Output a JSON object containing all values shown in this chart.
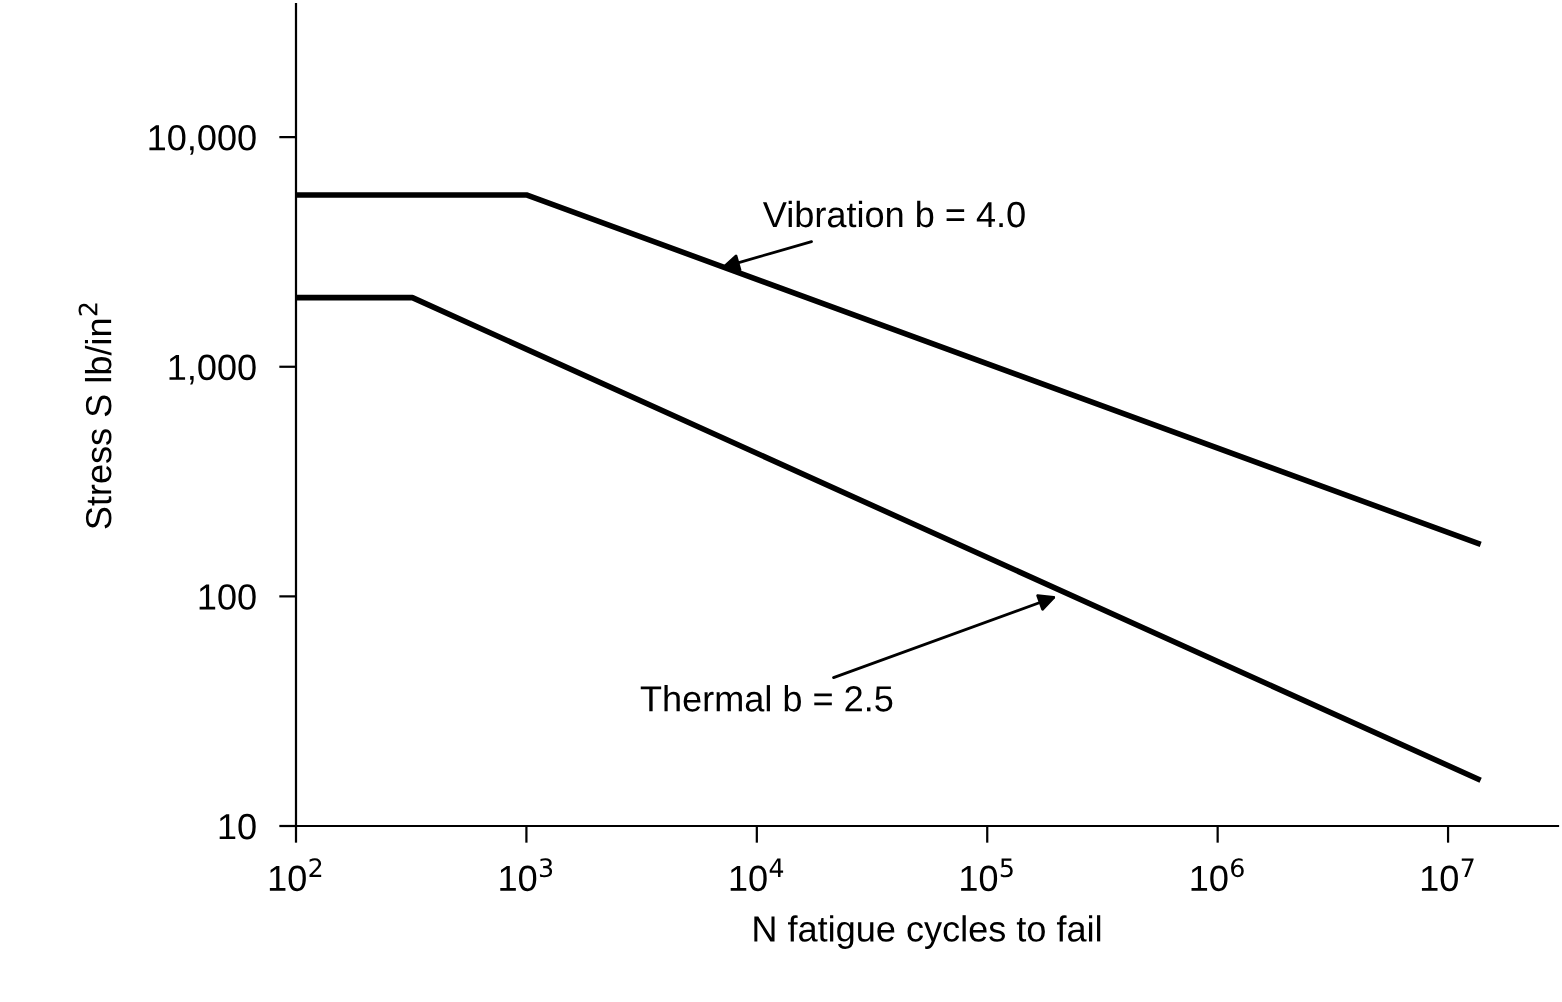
{
  "chart_data": {
    "type": "line",
    "xlabel": "N fatigue cycles to fail",
    "ylabel": "Stress S lb/in$^{2}$",
    "log": "xy",
    "grid": false,
    "legend": false,
    "marker": "none",
    "line_style": "solid",
    "xlim": [
      100,
      30000000
    ],
    "ylim": [
      10,
      38000
    ],
    "xticks": [
      {
        "value": 100,
        "label": "10$^{2}$"
      },
      {
        "value": 1000,
        "label": "10$^{3}$"
      },
      {
        "value": 10000,
        "label": "10$^{4}$"
      },
      {
        "value": 100000,
        "label": "10$^{5}$"
      },
      {
        "value": 1000000,
        "label": "10$^{6}$"
      },
      {
        "value": 10000000,
        "label": "10$^{7}$"
      }
    ],
    "yticks": [
      10,
      100,
      {
        "value": 1000,
        "label": "1,000"
      },
      {
        "value": 10000,
        "label": "10,000"
      }
    ],
    "series": [
      {
        "color": "#000000",
        "x": [
          100,
          1000,
          13500000
        ],
        "values": [
          5600,
          5600,
          170
        ]
      },
      {
        "color": "#000000",
        "x": [
          100,
          320,
          13500000
        ],
        "values": [
          2000,
          2000,
          16
        ]
      }
    ],
    "annotations": [
      {
        "text": "Vibration b = 4.0",
        "x": 7000,
        "y": 2700
      },
      {
        "text": "Thermal b = 2.5",
        "x": 200000,
        "y": 100
      }
    ]
  }
}
